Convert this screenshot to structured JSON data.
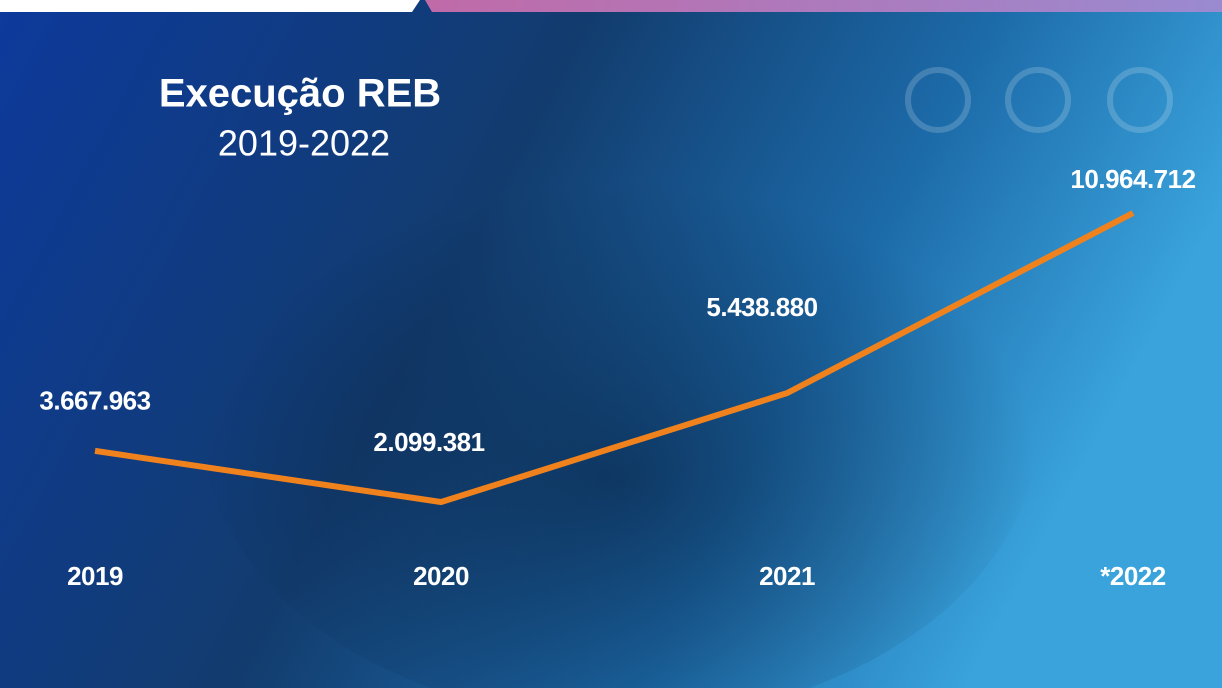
{
  "chart_data": {
    "type": "line",
    "title": "Execução REB",
    "subtitle": "2019-2022",
    "categories": [
      "2019",
      "2020",
      "2021",
      "*2022"
    ],
    "values": [
      3667963,
      2099381,
      5438880,
      10964712
    ],
    "value_labels": [
      "3.667.963",
      "2.099.381",
      "5.438.880",
      "10.964.712"
    ],
    "color": "#f0821e"
  }
}
